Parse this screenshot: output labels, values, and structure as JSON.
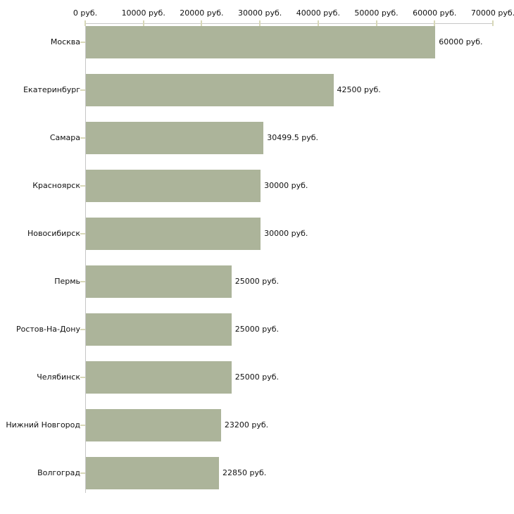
{
  "chart_data": {
    "type": "bar",
    "orientation": "horizontal",
    "title": "",
    "xlabel": "",
    "ylabel": "",
    "xlim": [
      0,
      70000
    ],
    "x_tick_step": 10000,
    "x_tick_labels": [
      "0 руб.",
      "10000 руб.",
      "20000 руб.",
      "30000 руб.",
      "40000 руб.",
      "50000 руб.",
      "60000 руб.",
      "70000 руб."
    ],
    "categories": [
      "Москва",
      "Екатеринбург",
      "Самара",
      "Красноярск",
      "Новосибирск",
      "Пермь",
      "Ростов-На-Дону",
      "Челябинск",
      "Нижний Новгород",
      "Волгоград"
    ],
    "values": [
      60000,
      42500,
      30499.5,
      30000,
      30000,
      25000,
      25000,
      25000,
      23200,
      22850
    ],
    "value_labels": [
      "60000 руб.",
      "42500 руб.",
      "30499.5 руб.",
      "30000 руб.",
      "30000 руб.",
      "25000 руб.",
      "25000 руб.",
      "25000 руб.",
      "23200 руб.",
      "22850 руб."
    ],
    "legend": null,
    "grid": false,
    "colors": {
      "bar": "#acb49a",
      "axis_line": "#c6c6c6",
      "tick_mark": "#d8d8b8",
      "text": "#111111",
      "background": "#ffffff"
    }
  }
}
